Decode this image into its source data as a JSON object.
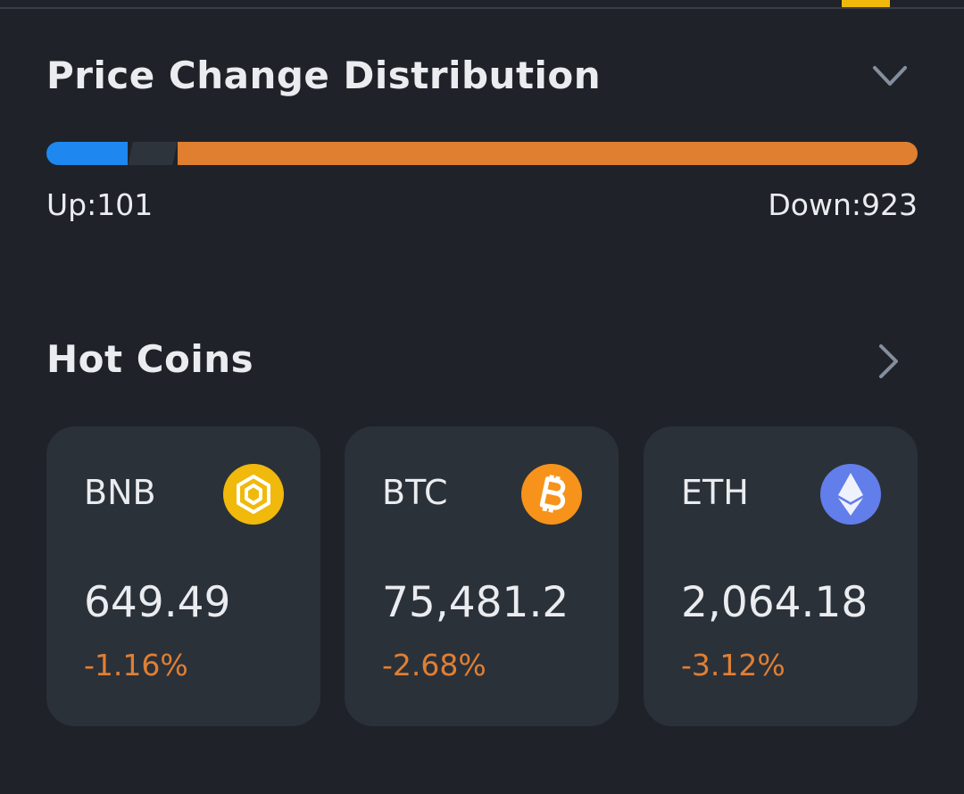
{
  "distribution": {
    "title": "Price Change Distribution",
    "up_label": "Up:",
    "up": 101,
    "down_label": "Down:",
    "down": 923
  },
  "hot_coins": {
    "title": "Hot Coins",
    "coins": [
      {
        "name": "BNB",
        "price": "649.49",
        "change": "-1.16%"
      },
      {
        "name": "BTC",
        "price": "75,481.2",
        "change": "-2.68%"
      },
      {
        "name": "ETH",
        "price": "2,064.18",
        "change": "-3.12%"
      }
    ]
  }
}
